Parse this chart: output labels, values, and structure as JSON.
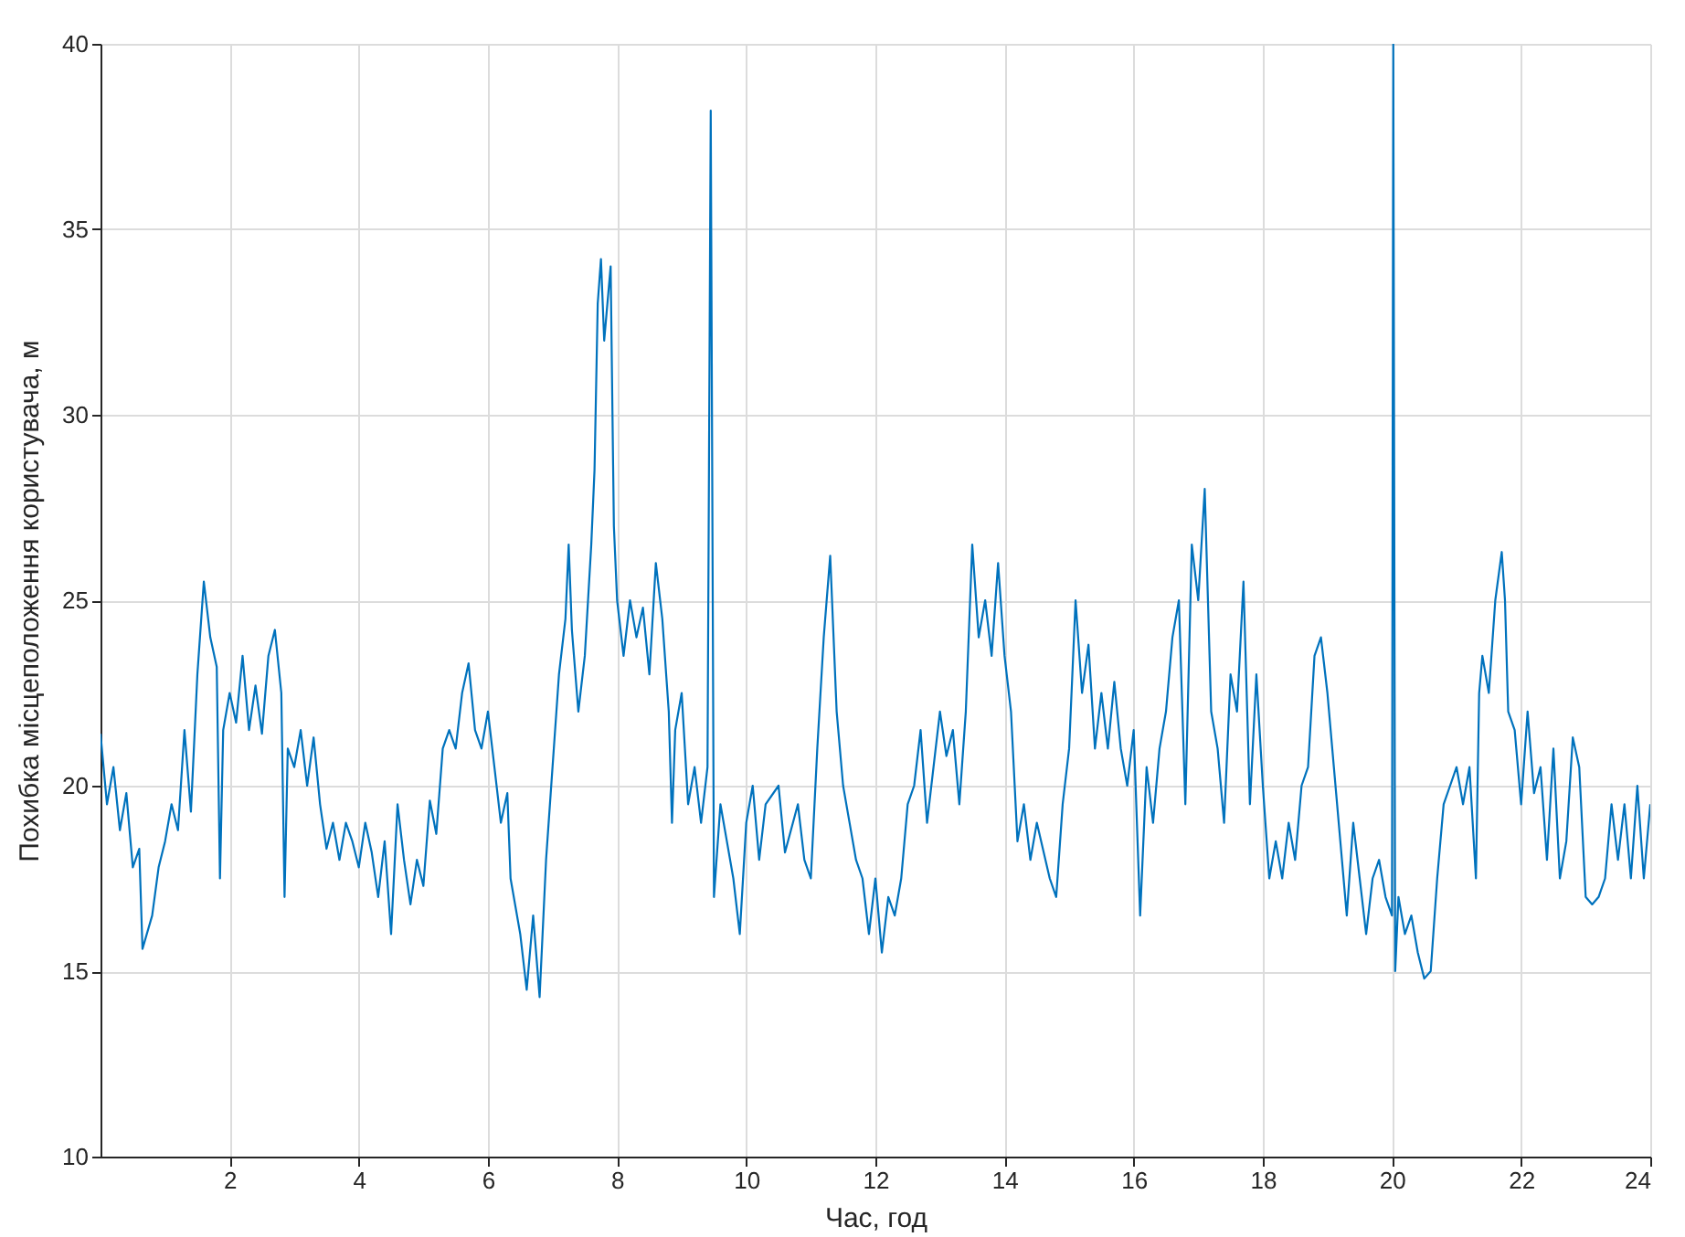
{
  "chart_data": {
    "type": "line",
    "xlabel": "Час, год",
    "ylabel": "Похибка місцеположення користувача, м",
    "xlim": [
      0,
      24
    ],
    "xticks": [
      2,
      4,
      6,
      8,
      10,
      12,
      14,
      16,
      18,
      20,
      22,
      24
    ],
    "ylim": [
      10,
      40
    ],
    "yticks": [
      10,
      15,
      20,
      25,
      30,
      35,
      40
    ],
    "grid": true,
    "line_style": "solid",
    "series": [
      {
        "color": "#0072bd",
        "x": [
          0.0,
          0.1,
          0.2,
          0.3,
          0.4,
          0.5,
          0.6,
          0.65,
          0.8,
          0.9,
          1.0,
          1.1,
          1.2,
          1.3,
          1.4,
          1.5,
          1.6,
          1.7,
          1.8,
          1.85,
          1.9,
          2.0,
          2.1,
          2.2,
          2.3,
          2.4,
          2.5,
          2.6,
          2.7,
          2.8,
          2.85,
          2.9,
          3.0,
          3.1,
          3.2,
          3.3,
          3.4,
          3.5,
          3.6,
          3.7,
          3.8,
          3.9,
          4.0,
          4.1,
          4.2,
          4.3,
          4.4,
          4.5,
          4.6,
          4.7,
          4.8,
          4.9,
          5.0,
          5.1,
          5.2,
          5.3,
          5.4,
          5.5,
          5.6,
          5.7,
          5.8,
          5.9,
          6.0,
          6.1,
          6.2,
          6.3,
          6.35,
          6.5,
          6.6,
          6.7,
          6.8,
          6.9,
          7.0,
          7.1,
          7.2,
          7.25,
          7.3,
          7.4,
          7.5,
          7.6,
          7.65,
          7.7,
          7.75,
          7.8,
          7.9,
          7.95,
          8.0,
          8.1,
          8.2,
          8.3,
          8.4,
          8.5,
          8.6,
          8.7,
          8.8,
          8.85,
          8.9,
          9.0,
          9.1,
          9.2,
          9.3,
          9.4,
          9.45,
          9.5,
          9.6,
          9.7,
          9.8,
          9.9,
          10.0,
          10.1,
          10.2,
          10.3,
          10.5,
          10.6,
          10.8,
          10.9,
          11.0,
          11.1,
          11.2,
          11.3,
          11.4,
          11.5,
          11.6,
          11.7,
          11.8,
          11.9,
          12.0,
          12.1,
          12.2,
          12.3,
          12.4,
          12.5,
          12.6,
          12.7,
          12.8,
          12.9,
          13.0,
          13.1,
          13.2,
          13.3,
          13.4,
          13.5,
          13.6,
          13.7,
          13.8,
          13.9,
          14.0,
          14.1,
          14.2,
          14.3,
          14.4,
          14.5,
          14.7,
          14.8,
          14.9,
          15.0,
          15.1,
          15.2,
          15.3,
          15.4,
          15.5,
          15.6,
          15.7,
          15.8,
          15.9,
          16.0,
          16.1,
          16.2,
          16.3,
          16.4,
          16.5,
          16.6,
          16.7,
          16.8,
          16.9,
          17.0,
          17.1,
          17.2,
          17.3,
          17.4,
          17.5,
          17.6,
          17.7,
          17.8,
          17.9,
          18.0,
          18.1,
          18.2,
          18.3,
          18.4,
          18.5,
          18.6,
          18.7,
          18.8,
          18.9,
          19.0,
          19.1,
          19.2,
          19.3,
          19.4,
          19.5,
          19.6,
          19.7,
          19.8,
          19.9,
          20.0,
          20.02,
          20.05,
          20.1,
          20.2,
          20.3,
          20.4,
          20.5,
          20.6,
          20.7,
          20.8,
          20.9,
          21.0,
          21.1,
          21.2,
          21.3,
          21.35,
          21.4,
          21.5,
          21.6,
          21.7,
          21.75,
          21.8,
          21.9,
          22.0,
          22.1,
          22.2,
          22.3,
          22.4,
          22.5,
          22.6,
          22.7,
          22.8,
          22.9,
          23.0,
          23.1,
          23.2,
          23.3,
          23.4,
          23.5,
          23.6,
          23.7,
          23.8,
          23.9,
          24.0
        ],
        "values": [
          21.4,
          19.5,
          20.5,
          18.8,
          19.8,
          17.8,
          18.3,
          15.6,
          16.5,
          17.8,
          18.5,
          19.5,
          18.8,
          21.5,
          19.3,
          23.0,
          25.5,
          24.0,
          23.2,
          17.5,
          21.5,
          22.5,
          21.7,
          23.5,
          21.5,
          22.7,
          21.4,
          23.5,
          24.2,
          22.5,
          17.0,
          21.0,
          20.5,
          21.5,
          20.0,
          21.3,
          19.5,
          18.3,
          19.0,
          18.0,
          19.0,
          18.5,
          17.8,
          19.0,
          18.2,
          17.0,
          18.5,
          16.0,
          19.5,
          18.0,
          16.8,
          18.0,
          17.3,
          19.6,
          18.7,
          21.0,
          21.5,
          21.0,
          22.5,
          23.3,
          21.5,
          21.0,
          22.0,
          20.5,
          19.0,
          19.8,
          17.5,
          16.0,
          14.5,
          16.5,
          14.3,
          18.0,
          20.5,
          23.0,
          24.5,
          26.5,
          24.2,
          22.0,
          23.5,
          26.5,
          28.5,
          33.0,
          34.2,
          32.0,
          34.0,
          27.0,
          25.0,
          23.5,
          25.0,
          24.0,
          24.8,
          23.0,
          26.0,
          24.5,
          22.0,
          19.0,
          21.5,
          22.5,
          19.5,
          20.5,
          19.0,
          20.5,
          38.2,
          17.0,
          19.5,
          18.5,
          17.5,
          16.0,
          19.0,
          20.0,
          18.0,
          19.5,
          20.0,
          18.2,
          19.5,
          18.0,
          17.5,
          21.0,
          24.0,
          26.2,
          22.0,
          20.0,
          19.0,
          18.0,
          17.5,
          16.0,
          17.5,
          15.5,
          17.0,
          16.5,
          17.5,
          19.5,
          20.0,
          21.5,
          19.0,
          20.5,
          22.0,
          20.8,
          21.5,
          19.5,
          22.0,
          26.5,
          24.0,
          25.0,
          23.5,
          26.0,
          23.5,
          22.0,
          18.5,
          19.5,
          18.0,
          19.0,
          17.5,
          17.0,
          19.5,
          21.0,
          25.0,
          22.5,
          23.8,
          21.0,
          22.5,
          21.0,
          22.8,
          21.0,
          20.0,
          21.5,
          16.5,
          20.5,
          19.0,
          21.0,
          22.0,
          24.0,
          25.0,
          19.5,
          26.5,
          25.0,
          28.0,
          22.0,
          21.0,
          19.0,
          23.0,
          22.0,
          25.5,
          19.5,
          23.0,
          20.0,
          17.5,
          18.5,
          17.5,
          19.0,
          18.0,
          20.0,
          20.5,
          23.5,
          24.0,
          22.5,
          20.5,
          18.5,
          16.5,
          19.0,
          17.5,
          16.0,
          17.5,
          18.0,
          17.0,
          16.5,
          40.0,
          15.0,
          17.0,
          16.0,
          16.5,
          15.5,
          14.8,
          15.0,
          17.5,
          19.5,
          20.0,
          20.5,
          19.5,
          20.5,
          17.5,
          22.5,
          23.5,
          22.5,
          25.0,
          26.3,
          25.0,
          22.0,
          21.5,
          19.5,
          22.0,
          19.8,
          20.5,
          18.0,
          21.0,
          17.5,
          18.5,
          21.3,
          20.5,
          17.0,
          16.8,
          17.0,
          17.5,
          19.5,
          18.0,
          19.5,
          17.5,
          20.0,
          17.5,
          19.5
        ]
      }
    ]
  }
}
